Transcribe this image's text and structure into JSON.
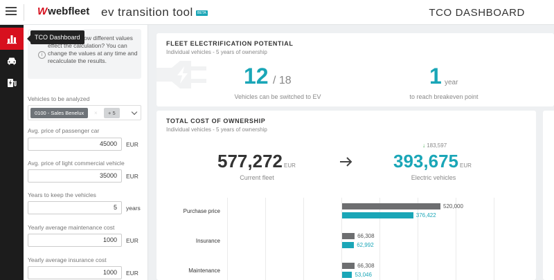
{
  "header": {
    "brand": "webfleet",
    "app_title": "ev transition tool",
    "badge": "BETA",
    "dashboard_title": "TCO DASHBOARD"
  },
  "nav": {
    "tooltip": "TCO Dashboard",
    "items": [
      {
        "name": "tco-dashboard",
        "icon": "bar-chart-icon",
        "active": true
      },
      {
        "name": "vehicles",
        "icon": "car-icon",
        "active": false
      },
      {
        "name": "charging",
        "icon": "ev-charger-icon",
        "active": false
      }
    ]
  },
  "panel": {
    "info_text": "Want to see how different values effect the calculation? You can change the values at any time and recalculate the results.",
    "vehicles_label": "Vehicles to be analyzed",
    "vehicle_chip": "0100 - Sales Benelux",
    "chip_remove": "×",
    "more_chip": "+ 5",
    "fields": [
      {
        "label": "Avg. price of passenger car",
        "value": "45000",
        "unit": "EUR"
      },
      {
        "label": "Avg. price of light commercial vehicle",
        "value": "35000",
        "unit": "EUR"
      },
      {
        "label": "Years to keep the vehicles",
        "value": "5",
        "unit": "years"
      },
      {
        "label": "Yearly average maintenance cost",
        "value": "1000",
        "unit": "EUR"
      },
      {
        "label": "Yearly average insurance cost",
        "value": "1000",
        "unit": "EUR"
      }
    ]
  },
  "potential": {
    "title": "FLEET ELECTRIFICATION POTENTIAL",
    "subtitle": "Individual vehicles - 5 years of ownership",
    "switchable": "12",
    "total": "/ 18",
    "switch_caption": "Vehicles can be switched to EV",
    "breakeven": "1",
    "breakeven_unit": "year",
    "breakeven_caption": "to reach breakeven point"
  },
  "tco": {
    "title": "TOTAL COST OF OWNERSHIP",
    "subtitle": "Individual vehicles - 5 years of ownership",
    "current_value": "577,272",
    "current_unit": "EUR",
    "current_caption": "Current fleet",
    "ev_value": "393,675",
    "ev_unit": "EUR",
    "ev_caption": "Electric vehicles",
    "savings": "183,597",
    "colors": {
      "current": "#6d6e70",
      "ev": "#1aa6b7"
    },
    "rows": [
      {
        "label": "Purchase price",
        "current": 520000,
        "current_label": "520,000",
        "ev": 376422,
        "ev_label": "376,422"
      },
      {
        "label": "Insurance",
        "current": 66308,
        "current_label": "66,308",
        "ev": 62992,
        "ev_label": "62,992"
      },
      {
        "label": "Maintenance",
        "current": 66308,
        "current_label": "66,308",
        "ev": 53046,
        "ev_label": "53,046"
      }
    ]
  }
}
